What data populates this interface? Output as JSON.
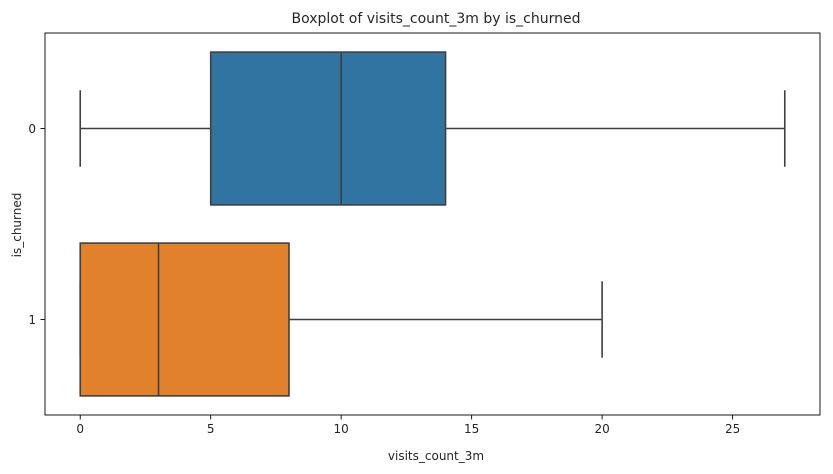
{
  "chart_data": {
    "type": "boxplot",
    "orientation": "horizontal",
    "title": "Boxplot of visits_count_3m by is_churned",
    "xlabel": "visits_count_3m",
    "ylabel": "is_churned",
    "xlim": [
      -1.35,
      28.35
    ],
    "x_ticks": [
      0,
      5,
      10,
      15,
      20,
      25
    ],
    "categories": [
      "0",
      "1"
    ],
    "boxes": [
      {
        "category": "0",
        "whisker_low": 0,
        "q1": 5,
        "median": 10,
        "q3": 14,
        "whisker_high": 27,
        "color": "#3274a1"
      },
      {
        "category": "1",
        "whisker_low": 0,
        "q1": 0,
        "median": 3,
        "q3": 8,
        "whisker_high": 20,
        "color": "#e1812c"
      }
    ],
    "line_color": "#3f3f3f",
    "grid": false
  }
}
